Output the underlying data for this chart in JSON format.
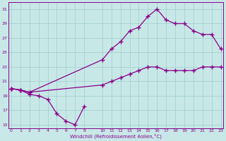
{
  "xlabel": "Windchill (Refroidissement éolien,°C)",
  "bg_color": "#c8e8e8",
  "line_color": "#880088",
  "grid_color": "#a0cccc",
  "line1_x": [
    0,
    1,
    2,
    3,
    4,
    5,
    6,
    7,
    8
  ],
  "line1_y": [
    20,
    19.8,
    19.2,
    19.0,
    18.5,
    16.5,
    15.5,
    15.0,
    17.5
  ],
  "line2_x": [
    0,
    1,
    2,
    10,
    11,
    12,
    13,
    14,
    15,
    16,
    17,
    18,
    19,
    20,
    21,
    22,
    23
  ],
  "line2_y": [
    20.0,
    19.8,
    19.5,
    24.0,
    25.5,
    26.5,
    28.0,
    28.5,
    30.0,
    31.0,
    29.5,
    29.0,
    29.0,
    28.0,
    27.5,
    27.5,
    25.5
  ],
  "line3_x": [
    0,
    1,
    2,
    10,
    11,
    12,
    13,
    14,
    15,
    16,
    17,
    18,
    19,
    20,
    21,
    22,
    23
  ],
  "line3_y": [
    20.0,
    19.8,
    19.5,
    20.5,
    21.0,
    21.5,
    22.0,
    22.5,
    23.0,
    23.0,
    22.5,
    22.5,
    22.5,
    22.5,
    23.0,
    23.0,
    23.0
  ],
  "xlim": [
    -0.3,
    23.3
  ],
  "ylim": [
    14.5,
    32
  ],
  "yticks": [
    15,
    17,
    19,
    21,
    23,
    25,
    27,
    29,
    31
  ],
  "xtick_positions": [
    0,
    1,
    2,
    3,
    4,
    5,
    6,
    7,
    8,
    10,
    11,
    12,
    13,
    14,
    15,
    16,
    17,
    18,
    19,
    20,
    21,
    22,
    23
  ],
  "xtick_labels": [
    "0",
    "1",
    "2",
    "3",
    "4",
    "5",
    "6",
    "7",
    "8",
    "10",
    "11",
    "12",
    "13",
    "14",
    "15",
    "16",
    "17",
    "18",
    "19",
    "20",
    "21",
    "22",
    "23"
  ]
}
